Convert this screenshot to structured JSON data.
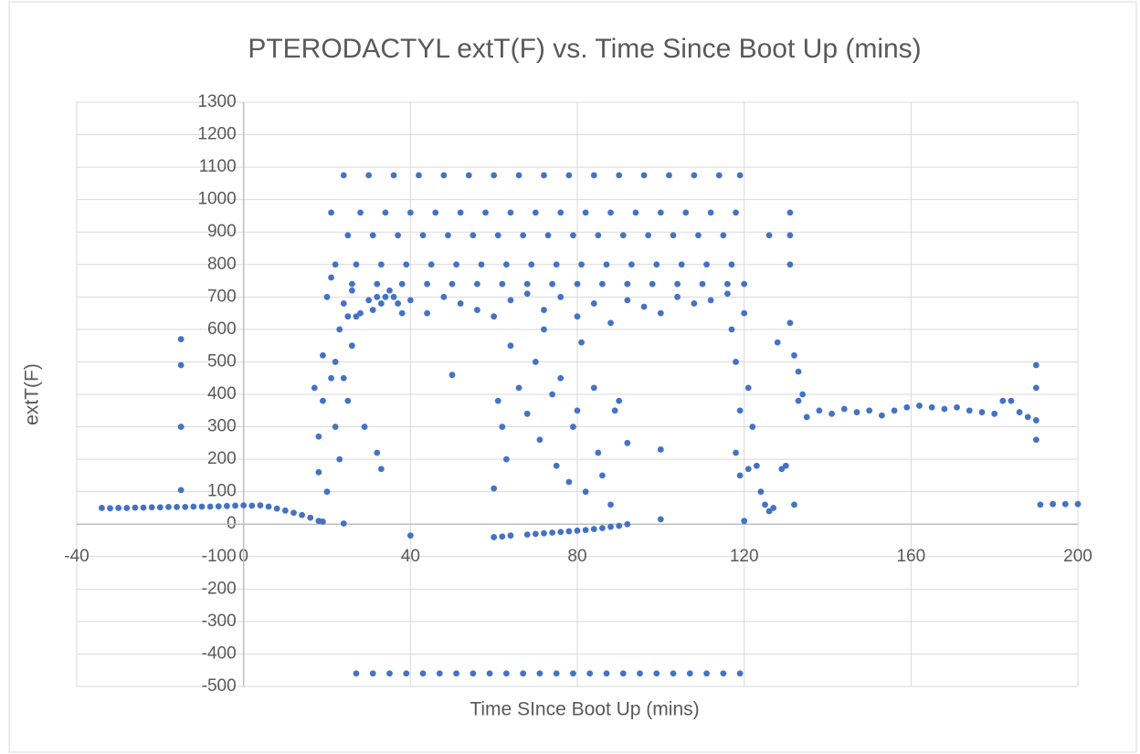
{
  "chart_data": {
    "type": "scatter",
    "title": "PTERODACTYL extT(F) vs. Time Since Boot Up (mins)",
    "x_label": "Time SInce Boot Up (mins)",
    "y_label": "extT(F)",
    "xlim": [
      -40,
      200
    ],
    "ylim": [
      -500,
      1300
    ],
    "xticks": [
      -40,
      0,
      40,
      80,
      120,
      160,
      200
    ],
    "yticks": [
      -500,
      -400,
      -300,
      -200,
      -100,
      0,
      100,
      200,
      300,
      400,
      500,
      600,
      700,
      800,
      900,
      1000,
      1100,
      1200,
      1300
    ],
    "grid": true,
    "series": [
      {
        "name": "extT(F)",
        "color": "#4472c4",
        "x": [
          -34,
          -32,
          -30,
          -28,
          -26,
          -24,
          -22,
          -20,
          -18,
          -16,
          -14,
          -12,
          -10,
          -8,
          -6,
          -4,
          -2,
          0,
          -15,
          -15,
          -15,
          -15,
          2,
          4,
          6,
          8,
          10,
          12,
          14,
          16,
          18,
          19,
          24,
          17,
          18,
          18,
          19,
          19,
          20,
          20,
          21,
          21,
          22,
          22,
          23,
          23,
          24,
          24,
          25,
          25,
          26,
          26,
          27,
          28,
          29,
          30,
          31,
          32,
          33,
          34,
          35,
          36,
          37,
          38,
          32,
          33,
          24,
          30,
          36,
          42,
          48,
          54,
          60,
          66,
          72,
          78,
          84,
          90,
          96,
          102,
          108,
          114,
          119,
          21,
          28,
          34,
          40,
          46,
          52,
          58,
          64,
          70,
          76,
          82,
          88,
          94,
          100,
          106,
          112,
          118,
          131,
          25,
          31,
          37,
          43,
          49,
          55,
          61,
          67,
          73,
          79,
          85,
          91,
          97,
          103,
          109,
          115,
          126,
          131,
          22,
          27,
          33,
          39,
          45,
          51,
          57,
          63,
          69,
          75,
          81,
          87,
          93,
          99,
          105,
          111,
          117,
          131,
          26,
          32,
          38,
          44,
          50,
          56,
          62,
          68,
          74,
          80,
          86,
          92,
          98,
          104,
          110,
          116,
          120,
          40,
          44,
          48,
          52,
          56,
          60,
          64,
          68,
          72,
          76,
          80,
          84,
          88,
          92,
          96,
          100,
          104,
          108,
          112,
          116,
          50,
          60,
          61,
          62,
          63,
          64,
          66,
          68,
          70,
          71,
          72,
          74,
          75,
          76,
          78,
          79,
          80,
          81,
          82,
          84,
          85,
          86,
          88,
          89,
          90,
          92,
          40,
          60,
          62,
          64,
          68,
          70,
          72,
          74,
          76,
          78,
          80,
          82,
          84,
          86,
          88,
          90,
          92,
          100,
          100,
          27,
          31,
          35,
          39,
          43,
          47,
          51,
          55,
          59,
          63,
          67,
          71,
          75,
          79,
          83,
          87,
          91,
          95,
          99,
          103,
          107,
          111,
          115,
          119,
          117,
          118,
          118,
          119,
          119,
          120,
          120,
          121,
          121,
          122,
          123,
          124,
          125,
          126,
          127,
          128,
          129,
          130,
          131,
          132,
          132,
          133,
          133,
          134,
          135,
          138,
          141,
          144,
          147,
          150,
          153,
          156,
          159,
          162,
          165,
          168,
          171,
          174,
          177,
          180,
          182,
          184,
          186,
          188,
          190,
          190,
          190,
          190,
          191,
          194,
          197,
          200
        ],
        "values": [
          50,
          49,
          50,
          50,
          51,
          51,
          52,
          52,
          53,
          53,
          53,
          54,
          54,
          54,
          55,
          56,
          57,
          58,
          570,
          490,
          300,
          105,
          57,
          58,
          54,
          48,
          42,
          35,
          28,
          20,
          10,
          8,
          2,
          420,
          160,
          270,
          520,
          380,
          700,
          100,
          450,
          760,
          300,
          500,
          600,
          200,
          450,
          680,
          380,
          640,
          550,
          720,
          640,
          650,
          300,
          690,
          660,
          700,
          680,
          700,
          720,
          700,
          680,
          650,
          220,
          170,
          1075,
          1075,
          1075,
          1075,
          1075,
          1075,
          1075,
          1075,
          1075,
          1075,
          1075,
          1075,
          1075,
          1075,
          1075,
          1075,
          1075,
          960,
          960,
          960,
          960,
          960,
          960,
          960,
          960,
          960,
          960,
          960,
          960,
          960,
          960,
          960,
          960,
          960,
          960,
          890,
          890,
          890,
          890,
          890,
          890,
          890,
          890,
          890,
          890,
          890,
          890,
          890,
          890,
          890,
          890,
          890,
          890,
          800,
          800,
          800,
          800,
          800,
          800,
          800,
          800,
          800,
          800,
          800,
          800,
          800,
          800,
          800,
          800,
          800,
          800,
          740,
          740,
          740,
          740,
          740,
          740,
          740,
          740,
          740,
          740,
          740,
          740,
          740,
          740,
          740,
          740,
          740,
          690,
          650,
          700,
          680,
          660,
          640,
          690,
          710,
          660,
          700,
          640,
          680,
          620,
          690,
          670,
          650,
          700,
          680,
          690,
          710,
          460,
          110,
          380,
          300,
          200,
          550,
          420,
          340,
          500,
          260,
          600,
          400,
          180,
          450,
          130,
          300,
          350,
          560,
          100,
          420,
          220,
          150,
          60,
          350,
          380,
          250,
          -35,
          -40,
          -38,
          -35,
          -32,
          -30,
          -28,
          -26,
          -24,
          -22,
          -20,
          -18,
          -15,
          -12,
          -8,
          -5,
          0,
          15,
          230,
          -460,
          -460,
          -460,
          -460,
          -460,
          -460,
          -460,
          -460,
          -460,
          -460,
          -460,
          -460,
          -460,
          -460,
          -460,
          -460,
          -460,
          -460,
          -460,
          -460,
          -460,
          -460,
          -460,
          -460,
          600,
          500,
          220,
          350,
          150,
          650,
          10,
          420,
          170,
          300,
          180,
          100,
          60,
          40,
          50,
          560,
          170,
          180,
          620,
          520,
          60,
          470,
          380,
          400,
          330,
          350,
          340,
          355,
          345,
          350,
          335,
          350,
          360,
          365,
          360,
          355,
          360,
          350,
          345,
          340,
          380,
          380,
          345,
          330,
          320,
          260,
          490,
          420,
          60,
          62,
          62,
          62
        ]
      }
    ]
  }
}
